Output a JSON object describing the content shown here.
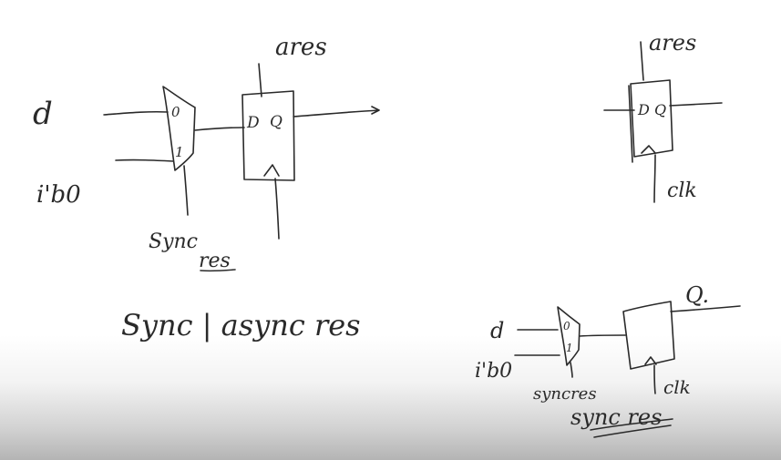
{
  "left_circuit": {
    "label_d": "d",
    "label_i_b0": "i'b0",
    "mux_in0": "0",
    "mux_in1": "1",
    "ff_d": "D",
    "ff_q": "Q",
    "label_ares": "ares",
    "label_sync_res_line1": "Sync",
    "label_sync_res_line2": "res",
    "caption": "Sync | async res"
  },
  "right_top_circuit": {
    "label_ares": "ares",
    "ff_d": "D",
    "ff_q": "Q",
    "label_clk": "clk"
  },
  "right_bottom_circuit": {
    "label_d": "d",
    "label_i_b0": "i'b0",
    "mux_in0": "0",
    "mux_in1": "1",
    "label_q": "Q.",
    "label_syncres": "syncres",
    "label_clk": "clk",
    "caption": "sync res"
  }
}
